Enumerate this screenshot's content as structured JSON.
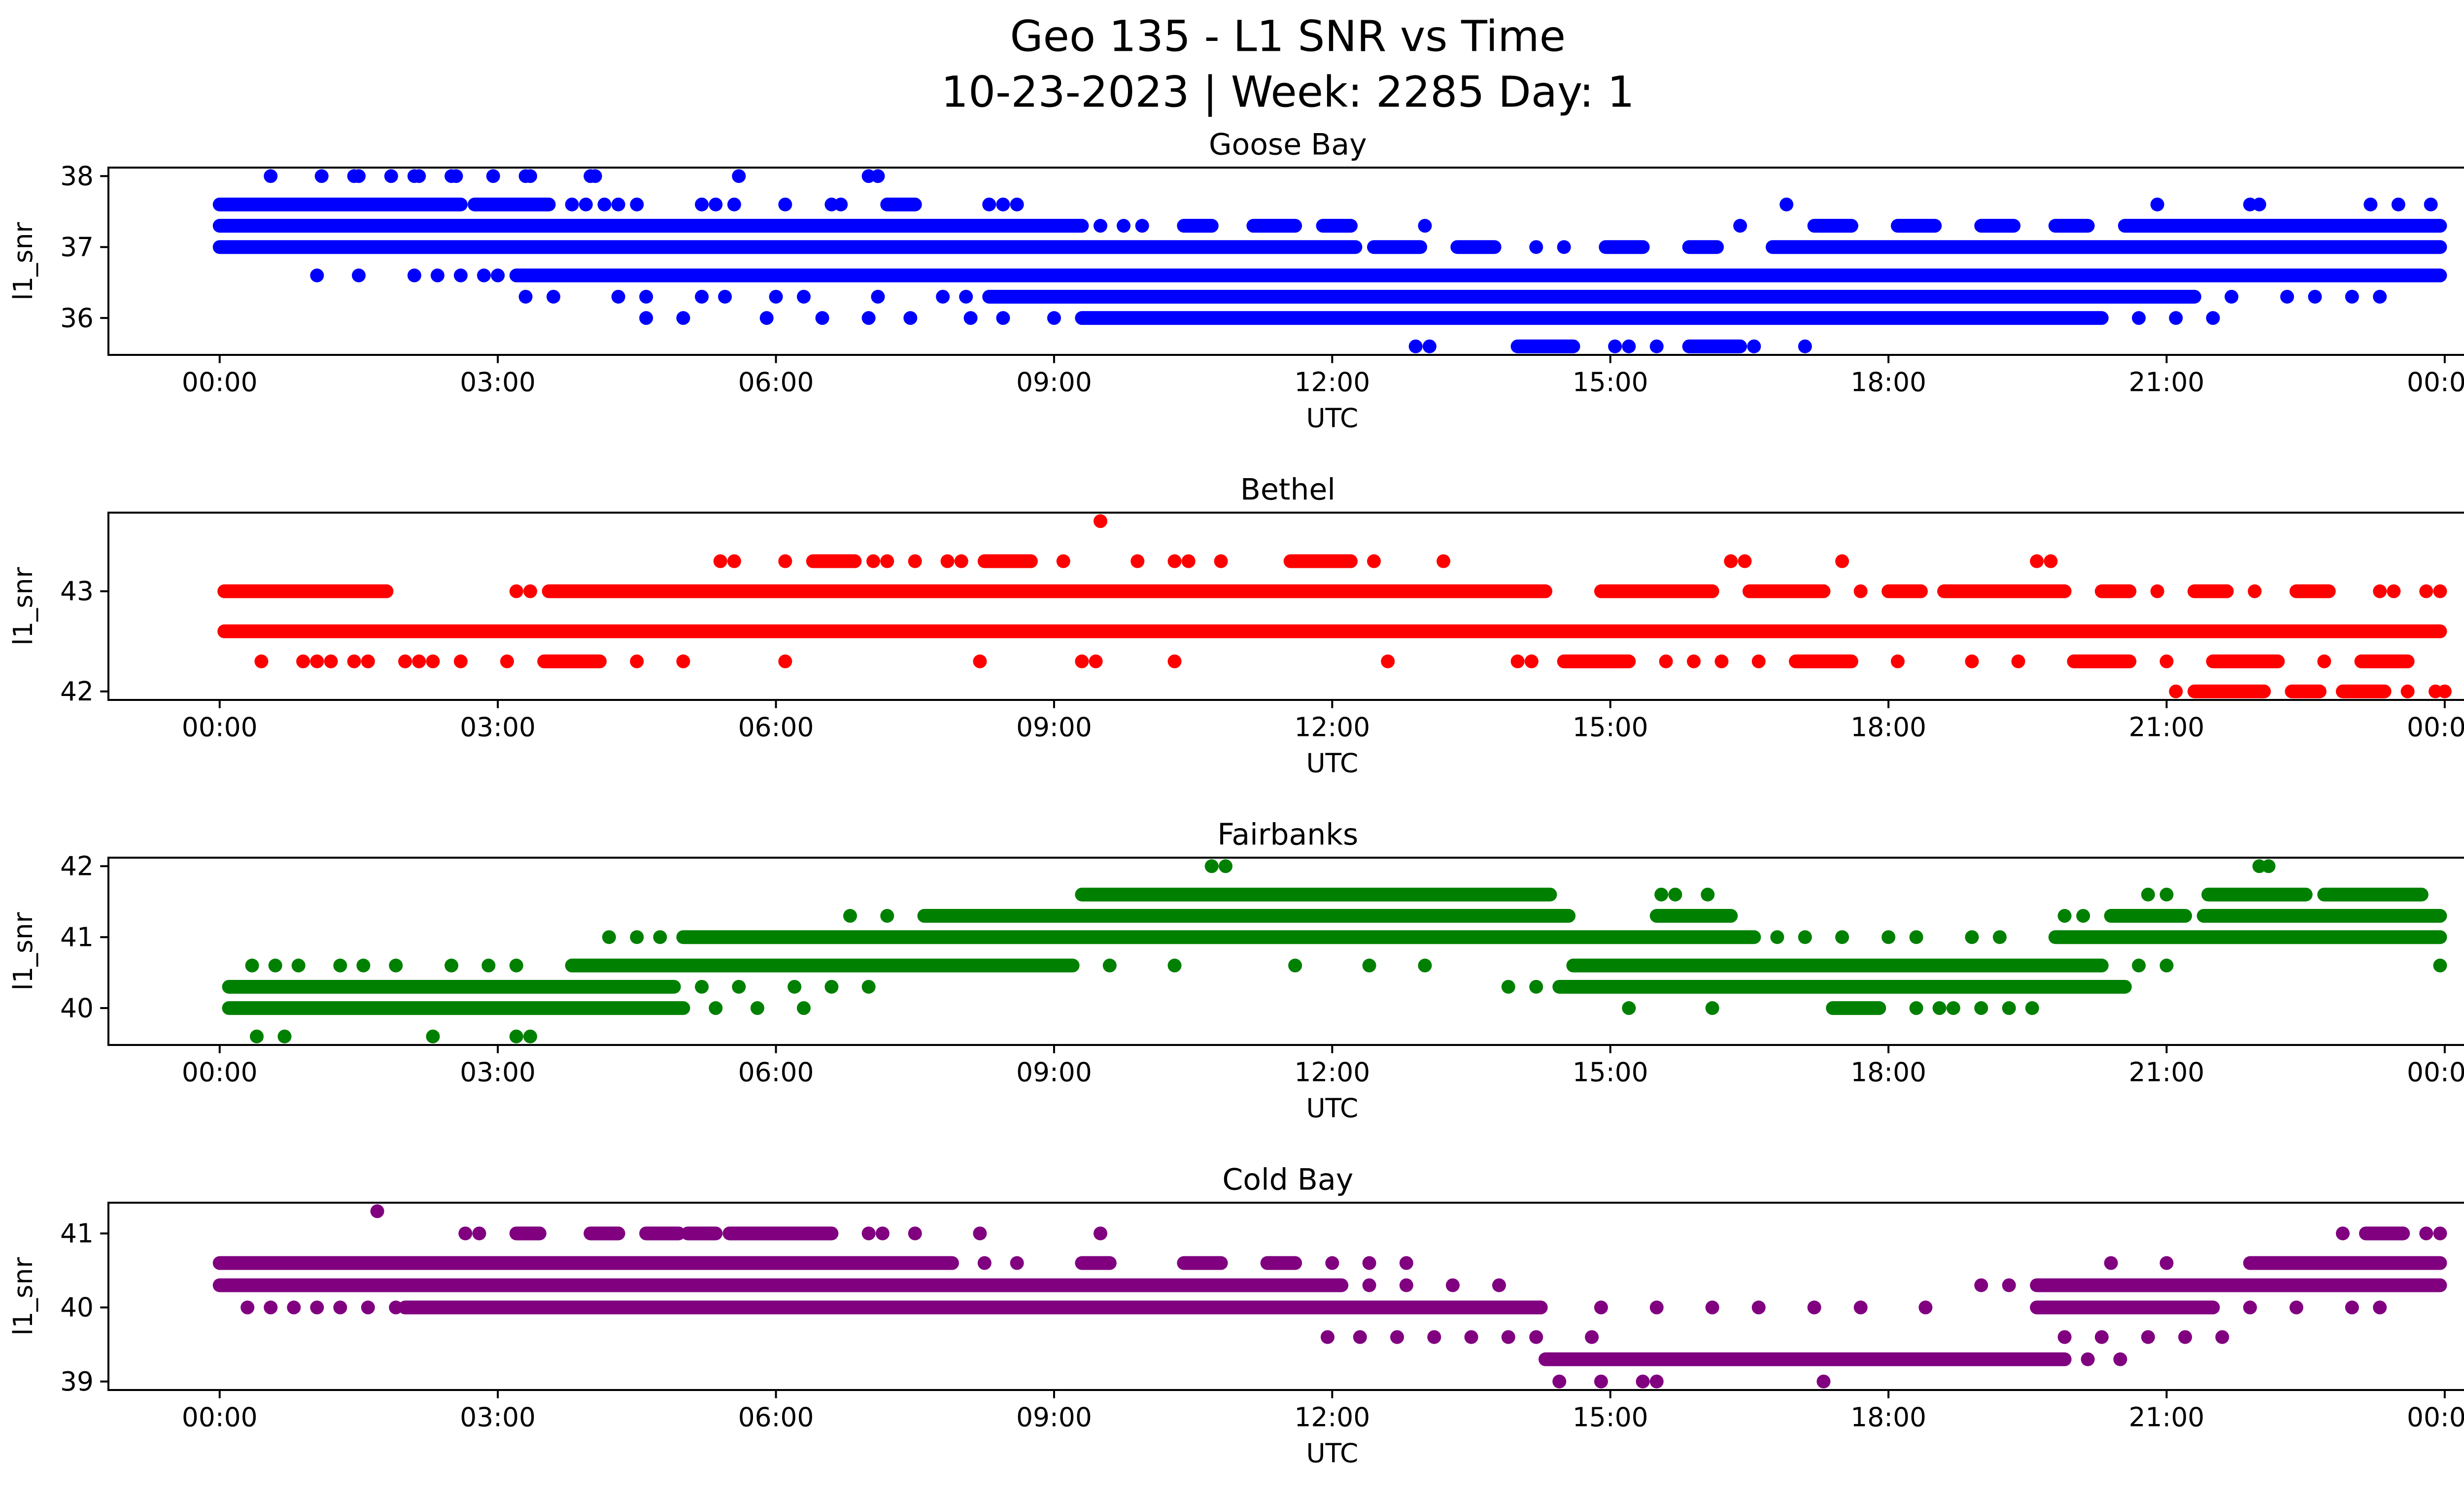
{
  "figure": {
    "title_line1": "Geo 135 - L1 SNR vs Time",
    "title_line2": "10-23-2023 | Week: 2285 Day: 1"
  },
  "chart_data": [
    {
      "type": "scatter",
      "title": "Goose Bay",
      "color": "#0000FF",
      "xlabel": "UTC",
      "ylabel": "l1_snr",
      "xlim": [
        -1.2,
        25.2
      ],
      "ylim": [
        35.48,
        38.12
      ],
      "xticks": [
        0,
        3,
        6,
        9,
        12,
        15,
        18,
        21,
        24
      ],
      "xtick_labels": [
        "00:00",
        "03:00",
        "06:00",
        "09:00",
        "12:00",
        "15:00",
        "18:00",
        "21:00",
        "00:00"
      ],
      "yticks": [
        36,
        37,
        38
      ],
      "bands": [
        {
          "snr": 38.0,
          "solid": [],
          "dots": [
            0.55,
            1.1,
            1.45,
            1.5,
            1.85,
            2.1,
            2.15,
            2.5,
            2.55,
            2.95,
            3.3,
            3.35,
            4.0,
            4.05,
            5.6,
            7.0,
            7.1
          ]
        },
        {
          "snr": 37.6,
          "solid": [
            [
              0.0,
              2.6
            ],
            [
              2.75,
              3.55
            ],
            [
              7.2,
              7.5
            ]
          ],
          "dots": [
            3.8,
            3.95,
            4.15,
            4.3,
            4.5,
            5.2,
            5.35,
            5.55,
            6.1,
            6.6,
            6.7,
            8.3,
            8.45,
            8.6,
            16.9,
            20.9,
            21.9,
            22.0,
            23.2,
            23.5,
            23.85
          ]
        },
        {
          "snr": 37.3,
          "solid": [
            [
              0.0,
              9.3
            ],
            [
              10.4,
              10.7
            ],
            [
              11.15,
              11.6
            ],
            [
              11.9,
              12.2
            ],
            [
              17.2,
              17.6
            ],
            [
              18.1,
              18.5
            ],
            [
              19.0,
              19.35
            ],
            [
              19.8,
              20.15
            ],
            [
              20.55,
              23.95
            ]
          ],
          "dots": [
            9.5,
            9.75,
            9.95,
            13.0,
            16.4
          ]
        },
        {
          "snr": 37.0,
          "solid": [
            [
              0.0,
              12.25
            ],
            [
              12.45,
              12.95
            ],
            [
              13.35,
              13.75
            ],
            [
              14.95,
              15.35
            ],
            [
              15.85,
              16.15
            ],
            [
              16.75,
              23.95
            ]
          ],
          "dots": [
            14.2,
            14.5
          ]
        },
        {
          "snr": 36.6,
          "solid": [
            [
              3.2,
              23.95
            ]
          ],
          "dots": [
            1.05,
            1.5,
            2.1,
            2.35,
            2.6,
            2.85,
            3.0
          ]
        },
        {
          "snr": 36.3,
          "solid": [
            [
              8.3,
              21.3
            ]
          ],
          "dots": [
            3.3,
            3.6,
            4.3,
            4.6,
            5.2,
            5.45,
            6.0,
            6.3,
            7.1,
            7.8,
            8.05,
            21.7,
            22.3,
            22.6,
            23.0,
            23.3
          ]
        },
        {
          "snr": 36.0,
          "solid": [
            [
              9.3,
              20.3
            ]
          ],
          "dots": [
            4.6,
            5.0,
            5.9,
            6.5,
            7.0,
            7.45,
            8.1,
            8.45,
            9.0,
            20.7,
            21.1,
            21.5
          ]
        },
        {
          "snr": 35.6,
          "solid": [
            [
              14.0,
              14.6
            ],
            [
              15.85,
              16.4
            ]
          ],
          "dots": [
            12.9,
            13.05,
            15.05,
            15.2,
            15.5,
            16.55,
            17.1
          ]
        }
      ]
    },
    {
      "type": "scatter",
      "title": "Bethel",
      "color": "#FF0000",
      "xlabel": "UTC",
      "ylabel": "l1_snr",
      "xlim": [
        -1.2,
        25.2
      ],
      "ylim": [
        41.915,
        43.785
      ],
      "xticks": [
        0,
        3,
        6,
        9,
        12,
        15,
        18,
        21,
        24
      ],
      "xtick_labels": [
        "00:00",
        "03:00",
        "06:00",
        "09:00",
        "12:00",
        "15:00",
        "18:00",
        "21:00",
        "00:00"
      ],
      "yticks": [
        42,
        43
      ],
      "bands": [
        {
          "snr": 43.7,
          "solid": [],
          "dots": [
            9.5
          ]
        },
        {
          "snr": 43.3,
          "solid": [
            [
              6.4,
              6.85
            ],
            [
              8.25,
              8.75
            ],
            [
              11.55,
              12.2
            ]
          ],
          "dots": [
            5.4,
            5.55,
            6.1,
            7.05,
            7.2,
            7.5,
            7.85,
            8.0,
            9.1,
            9.9,
            10.3,
            10.45,
            10.8,
            12.45,
            13.2,
            16.3,
            16.45,
            17.5,
            19.6,
            19.75
          ]
        },
        {
          "snr": 43.0,
          "solid": [
            [
              0.05,
              1.8
            ],
            [
              3.55,
              14.3
            ],
            [
              14.9,
              16.1
            ],
            [
              16.5,
              17.3
            ],
            [
              18.0,
              18.35
            ],
            [
              18.6,
              19.9
            ],
            [
              20.3,
              20.6
            ],
            [
              21.3,
              21.65
            ],
            [
              22.4,
              22.75
            ]
          ],
          "dots": [
            3.2,
            3.35,
            17.7,
            20.9,
            21.95,
            23.3,
            23.45,
            23.8,
            23.95
          ]
        },
        {
          "snr": 42.6,
          "solid": [
            [
              0.05,
              23.95
            ]
          ],
          "dots": []
        },
        {
          "snr": 42.3,
          "solid": [
            [
              3.5,
              4.1
            ],
            [
              14.5,
              15.2
            ],
            [
              17.0,
              17.6
            ],
            [
              20.0,
              20.6
            ],
            [
              21.5,
              22.2
            ],
            [
              23.1,
              23.6
            ]
          ],
          "dots": [
            0.45,
            0.9,
            1.05,
            1.2,
            1.45,
            1.6,
            2.0,
            2.15,
            2.3,
            2.6,
            3.1,
            4.5,
            5.0,
            6.1,
            8.2,
            9.3,
            9.45,
            10.3,
            12.6,
            14.0,
            14.15,
            15.6,
            15.9,
            16.2,
            16.6,
            18.1,
            18.9,
            19.4,
            21.0,
            22.7
          ]
        },
        {
          "snr": 42.0,
          "solid": [
            [
              21.3,
              22.05
            ],
            [
              22.35,
              22.65
            ],
            [
              22.9,
              23.35
            ]
          ],
          "dots": [
            21.1,
            23.6,
            23.9,
            24.0
          ]
        }
      ]
    },
    {
      "type": "scatter",
      "title": "Fairbanks",
      "color": "#008000",
      "xlabel": "UTC",
      "ylabel": "l1_snr",
      "xlim": [
        -1.2,
        25.2
      ],
      "ylim": [
        39.48,
        42.12
      ],
      "xticks": [
        0,
        3,
        6,
        9,
        12,
        15,
        18,
        21,
        24
      ],
      "xtick_labels": [
        "00:00",
        "03:00",
        "06:00",
        "09:00",
        "12:00",
        "15:00",
        "18:00",
        "21:00",
        "00:00"
      ],
      "yticks": [
        40,
        41,
        42
      ],
      "bands": [
        {
          "snr": 42.0,
          "solid": [],
          "dots": [
            10.7,
            10.85,
            22.0,
            22.1
          ]
        },
        {
          "snr": 41.6,
          "solid": [
            [
              9.3,
              14.35
            ],
            [
              21.45,
              22.5
            ],
            [
              22.7,
              23.75
            ]
          ],
          "dots": [
            15.55,
            15.7,
            16.05,
            20.8,
            21.0
          ]
        },
        {
          "snr": 41.3,
          "solid": [
            [
              7.6,
              14.55
            ],
            [
              15.5,
              16.3
            ],
            [
              20.4,
              21.2
            ],
            [
              21.4,
              23.95
            ]
          ],
          "dots": [
            6.8,
            7.2,
            19.9,
            20.1
          ]
        },
        {
          "snr": 41.0,
          "solid": [
            [
              5.0,
              16.55
            ],
            [
              19.8,
              23.95
            ]
          ],
          "dots": [
            4.2,
            4.5,
            4.75,
            16.8,
            17.1,
            17.5,
            18.0,
            18.3,
            18.9,
            19.2
          ]
        },
        {
          "snr": 40.6,
          "solid": [
            [
              3.8,
              9.2
            ],
            [
              14.6,
              20.3
            ]
          ],
          "dots": [
            0.35,
            0.6,
            0.85,
            1.3,
            1.55,
            1.9,
            2.5,
            2.9,
            3.2,
            9.6,
            10.3,
            11.6,
            12.4,
            13.0,
            20.7,
            21.0,
            23.95
          ]
        },
        {
          "snr": 40.3,
          "solid": [
            [
              0.1,
              4.9
            ],
            [
              14.45,
              20.55
            ]
          ],
          "dots": [
            5.2,
            5.6,
            6.2,
            6.6,
            7.0,
            13.9,
            14.2
          ]
        },
        {
          "snr": 40.0,
          "solid": [
            [
              0.1,
              5.0
            ],
            [
              17.4,
              17.9
            ]
          ],
          "dots": [
            5.35,
            5.8,
            6.3,
            15.2,
            16.1,
            18.3,
            18.55,
            18.7,
            19.0,
            19.3,
            19.55
          ]
        },
        {
          "snr": 39.6,
          "solid": [],
          "dots": [
            0.4,
            0.7,
            2.3,
            3.2,
            3.35
          ]
        }
      ]
    },
    {
      "type": "scatter",
      "title": "Cold Bay",
      "color": "#800080",
      "xlabel": "UTC",
      "ylabel": "l1_snr",
      "xlim": [
        -1.2,
        25.2
      ],
      "ylim": [
        38.885,
        41.415
      ],
      "xticks": [
        0,
        3,
        6,
        9,
        12,
        15,
        18,
        21,
        24
      ],
      "xtick_labels": [
        "00:00",
        "03:00",
        "06:00",
        "09:00",
        "12:00",
        "15:00",
        "18:00",
        "21:00",
        "00:00"
      ],
      "yticks": [
        39,
        40,
        41
      ],
      "bands": [
        {
          "snr": 41.3,
          "solid": [],
          "dots": [
            1.7
          ]
        },
        {
          "snr": 41.0,
          "solid": [
            [
              3.2,
              3.45
            ],
            [
              4.0,
              4.3
            ],
            [
              4.6,
              4.95
            ],
            [
              5.05,
              5.35
            ],
            [
              5.5,
              6.6
            ],
            [
              23.15,
              23.55
            ]
          ],
          "dots": [
            2.65,
            2.8,
            7.0,
            7.15,
            7.5,
            8.2,
            9.5,
            22.9,
            23.8,
            23.95
          ]
        },
        {
          "snr": 40.6,
          "solid": [
            [
              0.0,
              7.9
            ],
            [
              9.3,
              9.6
            ],
            [
              10.4,
              10.8
            ],
            [
              11.3,
              11.6
            ],
            [
              21.9,
              23.95
            ]
          ],
          "dots": [
            8.25,
            8.6,
            12.0,
            12.4,
            12.8,
            20.4,
            21.0
          ]
        },
        {
          "snr": 40.3,
          "solid": [
            [
              0.0,
              12.1
            ],
            [
              19.6,
              23.95
            ]
          ],
          "dots": [
            12.4,
            12.8,
            13.3,
            13.8,
            19.0,
            19.3
          ]
        },
        {
          "snr": 40.0,
          "solid": [
            [
              2.0,
              14.25
            ],
            [
              19.6,
              21.5
            ]
          ],
          "dots": [
            0.3,
            0.55,
            0.8,
            1.05,
            1.3,
            1.6,
            1.9,
            14.9,
            15.5,
            16.1,
            16.6,
            17.2,
            17.7,
            18.4,
            21.9,
            22.4,
            23.0,
            23.3
          ]
        },
        {
          "snr": 39.6,
          "solid": [],
          "dots": [
            11.95,
            12.3,
            12.7,
            13.1,
            13.5,
            13.9,
            14.2,
            14.8,
            19.9,
            20.3,
            20.8,
            21.2,
            21.6
          ]
        },
        {
          "snr": 39.3,
          "solid": [
            [
              14.3,
              19.9
            ]
          ],
          "dots": [
            20.15,
            20.5
          ]
        },
        {
          "snr": 39.0,
          "solid": [],
          "dots": [
            14.45,
            14.9,
            15.35,
            15.5,
            17.3
          ]
        }
      ]
    }
  ]
}
